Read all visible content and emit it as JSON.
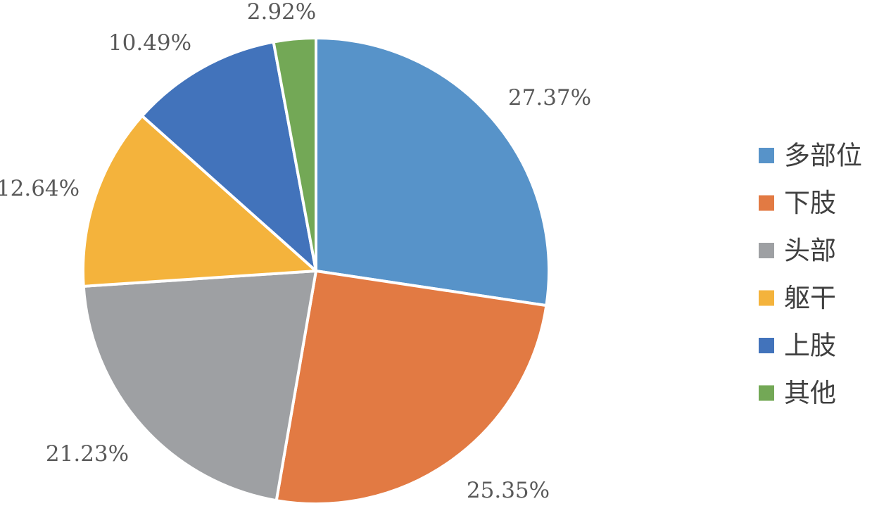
{
  "chart_data": {
    "type": "pie",
    "categories": [
      "多部位",
      "下肢",
      "头部",
      "躯干",
      "上肢",
      "其他"
    ],
    "values": [
      27.37,
      25.35,
      21.23,
      12.64,
      10.49,
      2.92
    ],
    "labels": [
      "27.37%",
      "25.35%",
      "21.23%",
      "12.64%",
      "10.49%",
      "2.92%"
    ],
    "colors": [
      "#5793C9",
      "#E27A43",
      "#9EA0A3",
      "#F4B33C",
      "#4273BB",
      "#73A856"
    ],
    "legend_position": "right",
    "start_angle": "12 o'clock, clockwise"
  }
}
